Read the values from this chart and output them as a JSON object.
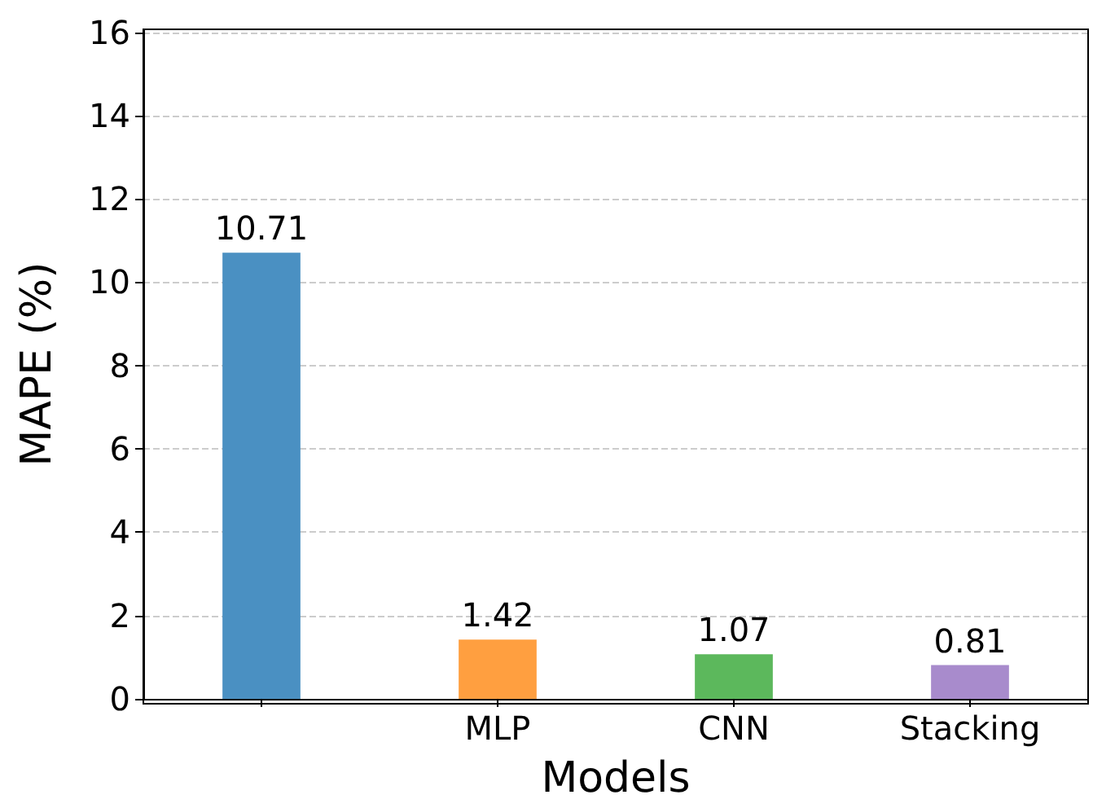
{
  "chart_data": {
    "type": "bar",
    "xlabel": "Models",
    "ylabel": "MAPE (%)",
    "categories": [
      null,
      "MLP",
      "CNN",
      "Stacking"
    ],
    "values": [
      10.71,
      1.42,
      1.07,
      0.81
    ],
    "colors": [
      "#4a90c2",
      "#ff9f40",
      "#5cb85c",
      "#a88bcc"
    ],
    "ylim": [
      0,
      16.07
    ],
    "yticks": [
      0,
      2,
      4,
      6,
      8,
      10,
      12,
      14,
      16
    ],
    "grid": "y",
    "data_labels": true
  }
}
